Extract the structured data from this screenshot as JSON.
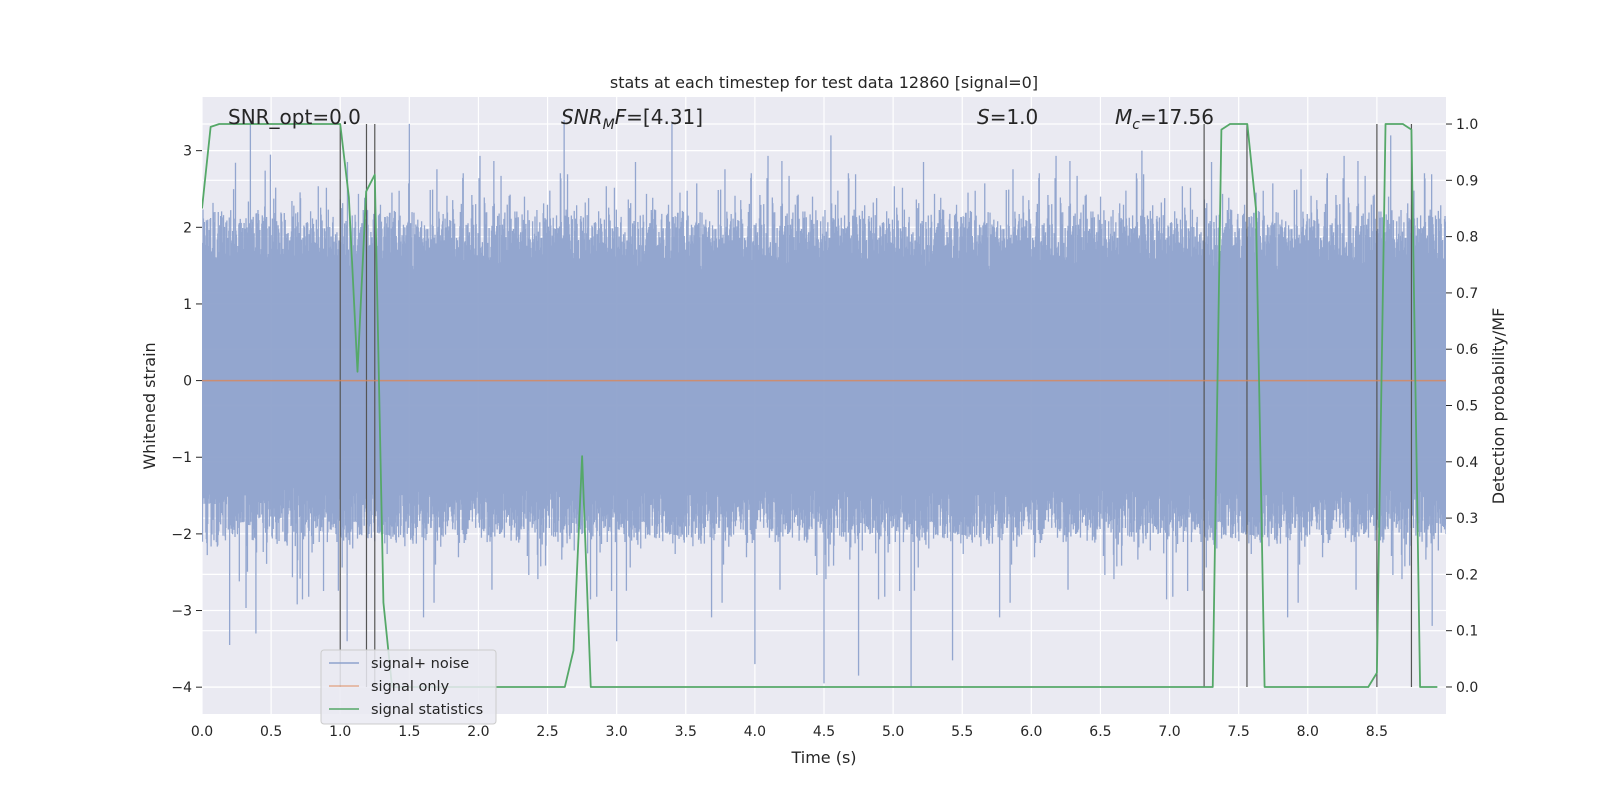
{
  "chart_data": {
    "type": "line",
    "title": "stats at each timestep for test data 12860 [signal=0]",
    "xlabel": "Time (s)",
    "ylabel": "Whitened strain",
    "y2label": "Detection probability/MF",
    "xlim": [
      0.0,
      9.0
    ],
    "ylim": [
      -4.35,
      3.7
    ],
    "y2lim": [
      -0.048,
      1.048
    ],
    "x_ticks": [
      "0.0",
      "0.5",
      "1.0",
      "1.5",
      "2.0",
      "2.5",
      "3.0",
      "3.5",
      "4.0",
      "4.5",
      "5.0",
      "5.5",
      "6.0",
      "6.5",
      "7.0",
      "7.5",
      "8.0",
      "8.5"
    ],
    "y_ticks": [
      "3",
      "2",
      "1",
      "0",
      "−1",
      "−2",
      "−3",
      "−4"
    ],
    "y2_ticks": [
      "1.0",
      "0.9",
      "0.8",
      "0.7",
      "0.6",
      "0.5",
      "0.4",
      "0.3",
      "0.2",
      "0.1",
      "0.0"
    ],
    "grid": true,
    "legend_position": "lower-left",
    "annotations": [
      {
        "text": "SNR_opt=0.0",
        "math": false
      },
      {
        "main": "SNR",
        "sub": "M",
        "tail": "F=[4.31]",
        "math": true
      },
      {
        "main": "S",
        "tail": "=1.0",
        "math": true
      },
      {
        "main": "M",
        "sub": "c",
        "tail": "=17.56",
        "math": true
      }
    ],
    "vertical_markers_x": [
      1.0,
      1.19,
      1.25,
      7.25,
      7.56,
      8.5,
      8.75
    ],
    "series": [
      {
        "name": "signal+ noise",
        "color": "#8ea2cc",
        "axis": "left",
        "kind": "noise",
        "sample_rate_hz": 4096,
        "typical_envelope": [
          -1.9,
          2.0
        ],
        "peak_high": [
          [
            0.35,
            3.4
          ],
          [
            1.5,
            3.35
          ],
          [
            2.62,
            3.4
          ],
          [
            3.4,
            3.35
          ],
          [
            4.55,
            3.2
          ],
          [
            6.8,
            3.0
          ],
          [
            8.6,
            3.2
          ]
        ],
        "peak_low": [
          [
            0.2,
            -3.45
          ],
          [
            0.39,
            -3.3
          ],
          [
            1.05,
            -3.4
          ],
          [
            3.0,
            -3.4
          ],
          [
            4.0,
            -3.7
          ],
          [
            4.5,
            -3.95
          ],
          [
            4.75,
            -3.85
          ],
          [
            5.13,
            -4.0
          ],
          [
            5.43,
            -3.65
          ],
          [
            8.9,
            -3.2
          ]
        ]
      },
      {
        "name": "signal only",
        "color": "#dd8452",
        "axis": "left",
        "x": [
          0.0,
          9.0
        ],
        "values": [
          0.0,
          0.0
        ]
      },
      {
        "name": "signal statistics",
        "color": "#55a868",
        "axis": "right",
        "x": [
          0.0,
          0.0625,
          0.125,
          0.1875,
          0.25,
          0.3125,
          0.375,
          0.4375,
          0.5,
          0.5625,
          0.625,
          0.6875,
          0.75,
          0.8125,
          0.875,
          0.9375,
          1.0,
          1.0625,
          1.125,
          1.1875,
          1.25,
          1.3125,
          1.375,
          1.4375,
          1.5,
          2.5,
          2.5625,
          2.625,
          2.6875,
          2.75,
          2.8125,
          3.0,
          7.0,
          7.1875,
          7.25,
          7.3125,
          7.375,
          7.4375,
          7.5,
          7.5625,
          7.625,
          7.6875,
          7.75,
          8.0,
          8.3125,
          8.4375,
          8.5,
          8.5625,
          8.625,
          8.6875,
          8.75,
          8.8125,
          8.875,
          8.9375
        ],
        "values": [
          0.85,
          0.995,
          1.0,
          1.0,
          1.0,
          1.0,
          1.0,
          1.0,
          1.0,
          1.0,
          1.0,
          1.0,
          1.0,
          1.0,
          1.0,
          1.0,
          1.0,
          0.87,
          0.56,
          0.88,
          0.91,
          0.15,
          0.0,
          0.0,
          0.0,
          0.0,
          0.0,
          0.0,
          0.065,
          0.41,
          0.0,
          0.0,
          0.0,
          0.0,
          0.0,
          0.0,
          0.99,
          1.0,
          1.0,
          1.0,
          0.85,
          0.0,
          0.0,
          0.0,
          0.0,
          0.0,
          0.025,
          1.0,
          1.0,
          1.0,
          0.99,
          0.0,
          0.0,
          0.0
        ]
      }
    ]
  }
}
